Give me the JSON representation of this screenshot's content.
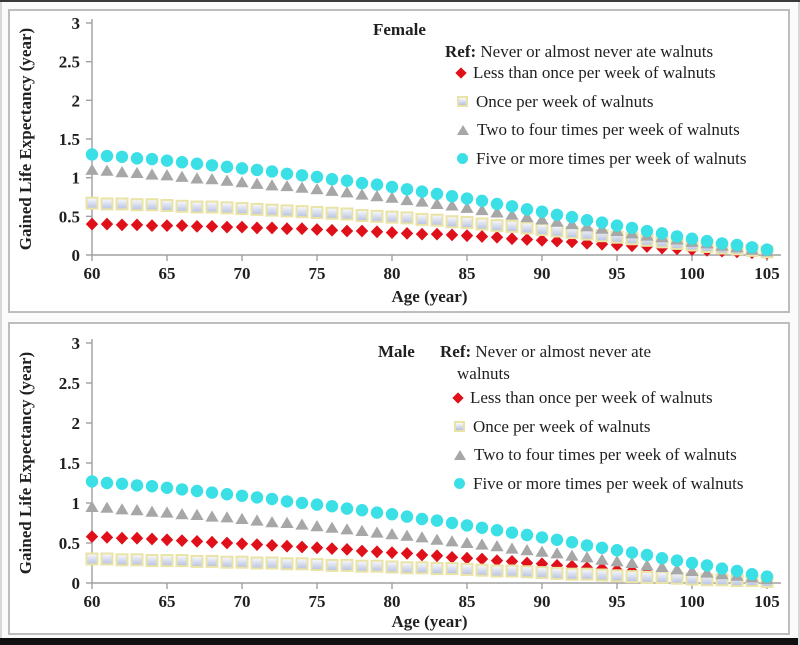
{
  "palette": {
    "red": "#e0101a",
    "gray": "#a7a7a7",
    "cyan": "#3bdfe6",
    "square_stroke": "#e9e3a6",
    "square_fill_top": "#fbfbfd",
    "square_fill_bottom": "#b5c1e2",
    "axis": "#a0a0a0",
    "text": "#1f1f1f"
  },
  "chart_data": [
    {
      "type": "scatter",
      "title": "Female",
      "ref_bold": "Ref:",
      "ref_lines": [
        " Never or almost never ate walnuts"
      ],
      "xlabel": "Age (year)",
      "ylabel": "Gained Life Expectancy (year)",
      "xlim": [
        60,
        105
      ],
      "ylim": [
        0,
        3
      ],
      "x_ticks": [
        60,
        65,
        70,
        75,
        80,
        85,
        90,
        95,
        100,
        105
      ],
      "y_ticks": [
        0,
        0.5,
        1,
        1.5,
        2,
        2.5,
        3
      ],
      "grid": false,
      "legend_position": "top-right-inside",
      "ages": [
        60,
        61,
        62,
        63,
        64,
        65,
        66,
        67,
        68,
        69,
        70,
        71,
        72,
        73,
        74,
        75,
        76,
        77,
        78,
        79,
        80,
        81,
        82,
        83,
        84,
        85,
        86,
        87,
        88,
        89,
        90,
        91,
        92,
        93,
        94,
        95,
        96,
        97,
        98,
        99,
        100,
        101,
        102,
        103,
        104,
        105
      ],
      "series": [
        {
          "name": "Less than once per week of walnuts",
          "marker": "diamond",
          "color": "#e0101a",
          "values": [
            0.4,
            0.4,
            0.39,
            0.39,
            0.38,
            0.38,
            0.38,
            0.37,
            0.37,
            0.36,
            0.36,
            0.35,
            0.35,
            0.34,
            0.34,
            0.33,
            0.32,
            0.31,
            0.31,
            0.3,
            0.29,
            0.28,
            0.27,
            0.27,
            0.26,
            0.25,
            0.24,
            0.23,
            0.21,
            0.2,
            0.19,
            0.18,
            0.17,
            0.15,
            0.14,
            0.13,
            0.12,
            0.11,
            0.09,
            0.08,
            0.07,
            0.06,
            0.05,
            0.04,
            0.03,
            0.02
          ]
        },
        {
          "name": "Once per week of walnuts",
          "marker": "square",
          "color": "#e9e3a6",
          "values": [
            0.67,
            0.66,
            0.66,
            0.65,
            0.65,
            0.64,
            0.63,
            0.62,
            0.62,
            0.61,
            0.6,
            0.59,
            0.58,
            0.57,
            0.56,
            0.55,
            0.54,
            0.53,
            0.51,
            0.5,
            0.49,
            0.48,
            0.46,
            0.45,
            0.43,
            0.42,
            0.4,
            0.38,
            0.37,
            0.35,
            0.33,
            0.31,
            0.29,
            0.27,
            0.25,
            0.23,
            0.21,
            0.19,
            0.17,
            0.15,
            0.13,
            0.11,
            0.09,
            0.08,
            0.06,
            0.04
          ]
        },
        {
          "name": "Two to four times per week of walnuts",
          "marker": "triangle",
          "color": "#a7a7a7",
          "values": [
            1.1,
            1.09,
            1.07,
            1.06,
            1.04,
            1.03,
            1.01,
            0.99,
            0.98,
            0.96,
            0.94,
            0.92,
            0.9,
            0.89,
            0.87,
            0.85,
            0.83,
            0.81,
            0.78,
            0.76,
            0.74,
            0.71,
            0.69,
            0.66,
            0.64,
            0.61,
            0.58,
            0.55,
            0.52,
            0.49,
            0.46,
            0.43,
            0.4,
            0.37,
            0.34,
            0.31,
            0.28,
            0.25,
            0.23,
            0.2,
            0.17,
            0.15,
            0.12,
            0.1,
            0.07,
            0.05
          ]
        },
        {
          "name": "Five or more times per week of walnuts",
          "marker": "circle",
          "color": "#3bdfe6",
          "values": [
            1.3,
            1.28,
            1.27,
            1.25,
            1.24,
            1.22,
            1.2,
            1.18,
            1.16,
            1.14,
            1.12,
            1.1,
            1.08,
            1.05,
            1.03,
            1.01,
            0.98,
            0.96,
            0.93,
            0.91,
            0.88,
            0.85,
            0.82,
            0.79,
            0.76,
            0.73,
            0.7,
            0.66,
            0.63,
            0.59,
            0.56,
            0.52,
            0.49,
            0.45,
            0.42,
            0.38,
            0.35,
            0.31,
            0.28,
            0.24,
            0.21,
            0.18,
            0.15,
            0.13,
            0.1,
            0.07
          ]
        }
      ]
    },
    {
      "type": "scatter",
      "title": "Male",
      "ref_bold": "Ref:",
      "ref_lines": [
        " Never or almost never ate",
        "walnuts"
      ],
      "xlabel": "Age (year)",
      "ylabel": "Gained Life Expectancy (year)",
      "xlim": [
        60,
        105
      ],
      "ylim": [
        0,
        3
      ],
      "x_ticks": [
        60,
        65,
        70,
        75,
        80,
        85,
        90,
        95,
        100,
        105
      ],
      "y_ticks": [
        0,
        0.5,
        1,
        1.5,
        2,
        2.5,
        3
      ],
      "grid": false,
      "legend_position": "top-right-inside",
      "ages": [
        60,
        61,
        62,
        63,
        64,
        65,
        66,
        67,
        68,
        69,
        70,
        71,
        72,
        73,
        74,
        75,
        76,
        77,
        78,
        79,
        80,
        81,
        82,
        83,
        84,
        85,
        86,
        87,
        88,
        89,
        90,
        91,
        92,
        93,
        94,
        95,
        96,
        97,
        98,
        99,
        100,
        101,
        102,
        103,
        104,
        105
      ],
      "series": [
        {
          "name": "Less than once per week of walnuts",
          "marker": "diamond",
          "color": "#e0101a",
          "values": [
            0.58,
            0.57,
            0.56,
            0.56,
            0.55,
            0.54,
            0.53,
            0.52,
            0.51,
            0.5,
            0.49,
            0.48,
            0.47,
            0.46,
            0.45,
            0.44,
            0.43,
            0.42,
            0.4,
            0.39,
            0.38,
            0.37,
            0.35,
            0.34,
            0.32,
            0.31,
            0.3,
            0.28,
            0.27,
            0.25,
            0.24,
            0.22,
            0.21,
            0.19,
            0.18,
            0.16,
            0.15,
            0.13,
            0.12,
            0.1,
            0.09,
            0.08,
            0.07,
            0.05,
            0.04,
            0.03
          ]
        },
        {
          "name": "Once per week of walnuts",
          "marker": "square",
          "color": "#e9e3a6",
          "values": [
            0.3,
            0.3,
            0.29,
            0.29,
            0.28,
            0.28,
            0.28,
            0.27,
            0.27,
            0.26,
            0.26,
            0.25,
            0.25,
            0.24,
            0.24,
            0.23,
            0.22,
            0.22,
            0.21,
            0.21,
            0.2,
            0.19,
            0.19,
            0.18,
            0.18,
            0.17,
            0.16,
            0.15,
            0.15,
            0.14,
            0.13,
            0.12,
            0.11,
            0.11,
            0.1,
            0.09,
            0.08,
            0.07,
            0.07,
            0.06,
            0.05,
            0.04,
            0.04,
            0.03,
            0.03,
            0.02
          ]
        },
        {
          "name": "Two to four times per week of walnuts",
          "marker": "triangle",
          "color": "#a7a7a7",
          "values": [
            0.95,
            0.94,
            0.92,
            0.91,
            0.89,
            0.88,
            0.86,
            0.85,
            0.83,
            0.82,
            0.8,
            0.78,
            0.76,
            0.75,
            0.73,
            0.71,
            0.69,
            0.67,
            0.65,
            0.63,
            0.61,
            0.59,
            0.57,
            0.54,
            0.52,
            0.5,
            0.48,
            0.46,
            0.43,
            0.41,
            0.39,
            0.37,
            0.34,
            0.32,
            0.29,
            0.27,
            0.25,
            0.22,
            0.2,
            0.17,
            0.15,
            0.13,
            0.11,
            0.09,
            0.07,
            0.05
          ]
        },
        {
          "name": "Five or more times per week of walnuts",
          "marker": "circle",
          "color": "#3bdfe6",
          "values": [
            1.27,
            1.25,
            1.24,
            1.22,
            1.21,
            1.19,
            1.17,
            1.15,
            1.13,
            1.11,
            1.09,
            1.07,
            1.05,
            1.02,
            1.0,
            0.98,
            0.96,
            0.93,
            0.91,
            0.88,
            0.86,
            0.83,
            0.8,
            0.78,
            0.75,
            0.72,
            0.69,
            0.66,
            0.63,
            0.6,
            0.57,
            0.54,
            0.51,
            0.47,
            0.44,
            0.41,
            0.38,
            0.35,
            0.31,
            0.28,
            0.25,
            0.22,
            0.18,
            0.15,
            0.11,
            0.08
          ]
        }
      ]
    }
  ]
}
